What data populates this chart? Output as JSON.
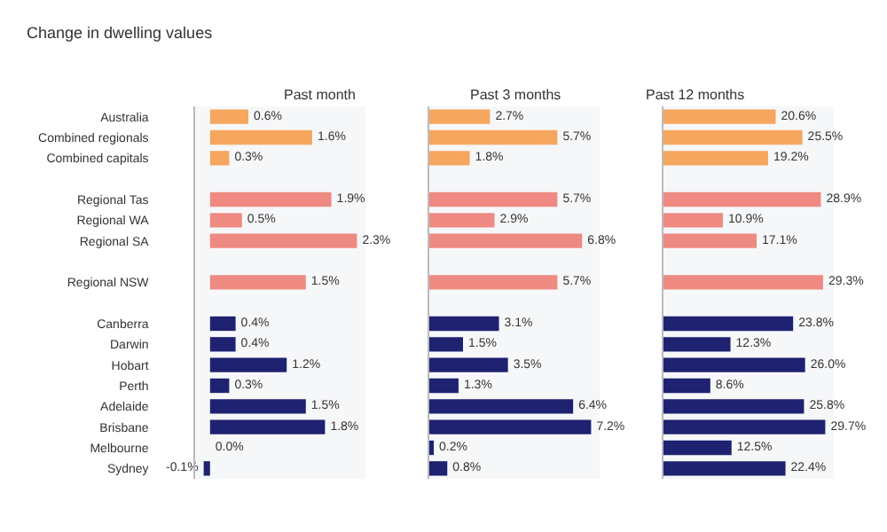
{
  "chart_data": [
    {
      "type": "bar",
      "orientation": "horizontal",
      "title": "Change in dwelling values",
      "subtitle": "Past month",
      "tick_labels": "y",
      "categories": [
        "Australia",
        "Combined regionals",
        "Combined capitals",
        null,
        "Regional Tas",
        "Regional WA",
        "Regional SA",
        null,
        "Regional NSW",
        null,
        "Canberra",
        "Darwin",
        "Hobart",
        "Perth",
        "Adelaide",
        "Brisbane",
        "Melbourne",
        "Sydney"
      ],
      "values": [
        0.6,
        1.6,
        0.3,
        null,
        1.9,
        0.5,
        2.3,
        null,
        1.5,
        null,
        0.4,
        0.4,
        1.2,
        0.3,
        1.5,
        1.8,
        0.0,
        -0.1
      ],
      "value_labels": [
        "0.6%",
        "1.6%",
        "0.3%",
        null,
        "1.9%",
        "0.5%",
        "2.3%",
        null,
        "1.5%",
        null,
        "0.4%",
        "0.4%",
        "1.2%",
        "0.3%",
        "1.5%",
        "1.8%",
        "0.0%",
        "-0.1%"
      ],
      "colors": [
        "#f5a75f",
        "#f5a75f",
        "#f5a75f",
        null,
        "#ee8a82",
        "#ee8a82",
        "#ee8a82",
        null,
        "#ee8a82",
        null,
        "#1f2270",
        "#1f2270",
        "#1f2270",
        "#1f2270",
        "#1f2270",
        "#1f2270",
        "#1f2270",
        "#1f2270"
      ]
    },
    {
      "type": "bar",
      "orientation": "horizontal",
      "subtitle": "Past 3 months",
      "tick_labels": false,
      "values": [
        2.7,
        5.7,
        1.8,
        null,
        5.7,
        2.9,
        6.8,
        null,
        5.7,
        null,
        3.1,
        1.5,
        3.5,
        1.3,
        6.4,
        7.2,
        0.2,
        0.8
      ],
      "value_labels": [
        "2.7%",
        "5.7%",
        "1.8%",
        null,
        "5.7%",
        "2.9%",
        "6.8%",
        null,
        "5.7%",
        null,
        "3.1%",
        "1.5%",
        "3.5%",
        "1.3%",
        "6.4%",
        "7.2%",
        "0.2%",
        "0.8%"
      ],
      "colors": [
        "#f5a75f",
        "#f5a75f",
        "#f5a75f",
        null,
        "#ee8a82",
        "#ee8a82",
        "#ee8a82",
        null,
        "#ee8a82",
        null,
        "#1f2270",
        "#1f2270",
        "#1f2270",
        "#1f2270",
        "#1f2270",
        "#1f2270",
        "#1f2270",
        "#1f2270"
      ]
    },
    {
      "type": "bar",
      "orientation": "horizontal",
      "subtitle": "Past 12 months",
      "tick_labels": false,
      "values": [
        20.6,
        25.5,
        19.2,
        null,
        28.9,
        10.9,
        17.1,
        null,
        29.3,
        null,
        23.8,
        12.3,
        26.0,
        8.6,
        25.8,
        29.7,
        12.5,
        22.4
      ],
      "value_labels": [
        "20.6%",
        "25.5%",
        "19.2%",
        null,
        "28.9%",
        "10.9%",
        "17.1%",
        null,
        "29.3%",
        null,
        "23.8%",
        "12.3%",
        "26.0%",
        "8.6%",
        "25.8%",
        "29.7%",
        "12.5%",
        "22.4%"
      ],
      "colors": [
        "#f5a75f",
        "#f5a75f",
        "#f5a75f",
        null,
        "#ee8a82",
        "#ee8a82",
        "#ee8a82",
        null,
        "#ee8a82",
        null,
        "#1f2270",
        "#1f2270",
        "#1f2270",
        "#1f2270",
        "#1f2270",
        "#1f2270",
        "#1f2270",
        "#1f2270"
      ]
    }
  ]
}
